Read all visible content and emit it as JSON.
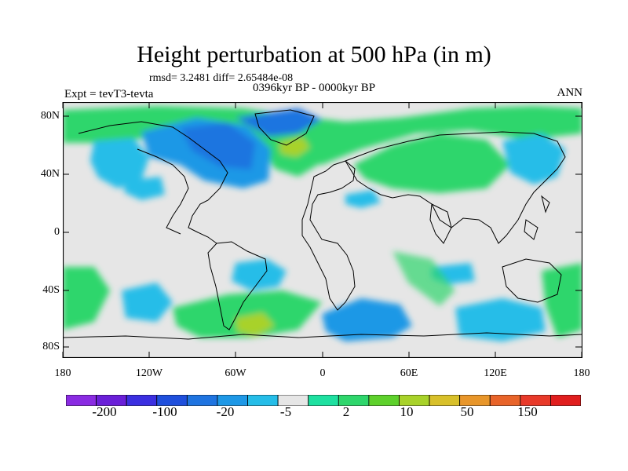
{
  "title": "Height perturbation at 500 hPa (in m)",
  "stats": "rmsd= 3.2481 diff= 2.65484e-08",
  "experiment": "Expt = tevT3-tevta",
  "period": "0396kyr BP - 0000kyr BP",
  "season": "ANN",
  "y_ticks": [
    "80N",
    "40N",
    "0",
    "40S",
    "80S"
  ],
  "x_ticks": [
    "180",
    "120W",
    "60W",
    "0",
    "60E",
    "120E",
    "180"
  ],
  "colorbar": {
    "colors": [
      "#8a2be2",
      "#6a1fd8",
      "#3b2fe0",
      "#1f4fdc",
      "#1f74e0",
      "#1e98e6",
      "#25bde8",
      "#e6e6e6",
      "#1ee0a0",
      "#2ed66c",
      "#5ed12c",
      "#a8d22a",
      "#d8c02a",
      "#e8962a",
      "#e8642a",
      "#e83a2a",
      "#e01e1e"
    ],
    "labels": [
      "-200",
      "-100",
      "-20",
      "-5",
      "2",
      "10",
      "50",
      "150"
    ]
  }
}
